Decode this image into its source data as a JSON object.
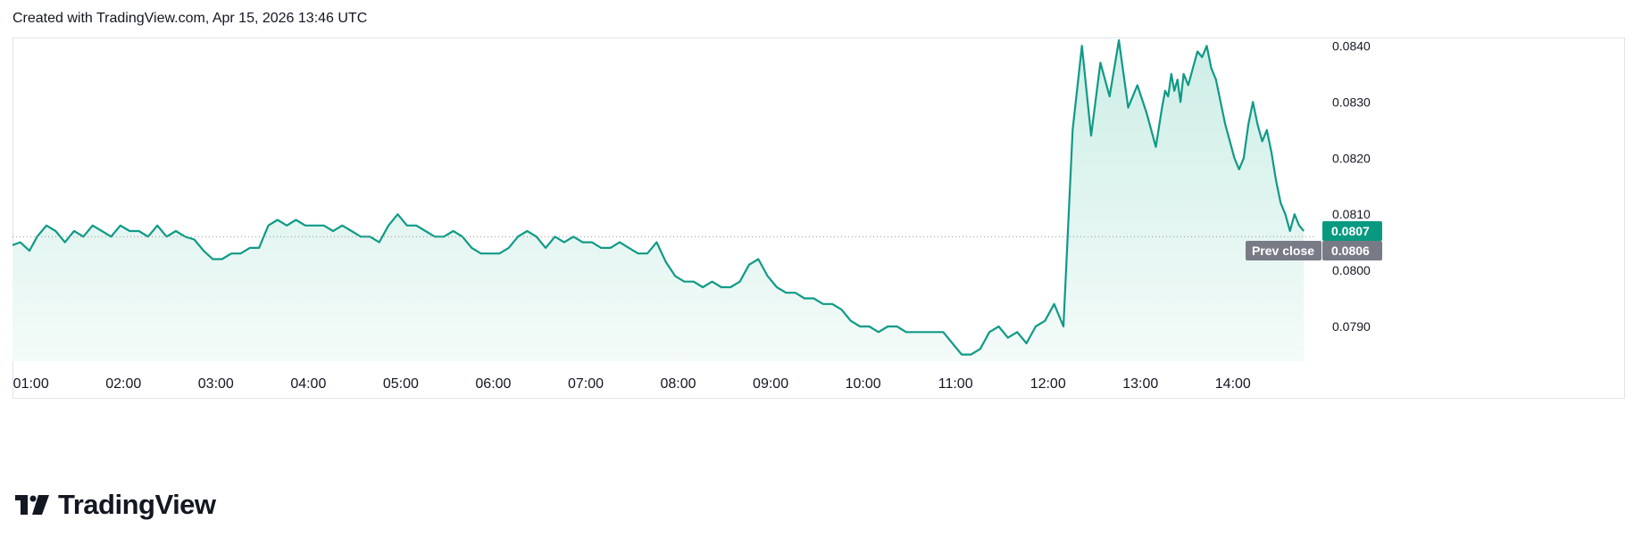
{
  "header": {
    "caption": "Created with TradingView.com, Apr 15, 2026 13:46 UTC"
  },
  "brand": {
    "name": "TradingView",
    "logo_icon": "tradingview-logo-icon"
  },
  "colors": {
    "line": "#0f9a86",
    "area_top": "#cdeee6",
    "area_bottom": "#f4fbf9",
    "label_current": "#089981",
    "label_prev": "#787b86",
    "grid_border": "#e0e3eb",
    "text": "#131722"
  },
  "price_labels": {
    "current": "0.0807",
    "prev_close_tag": "Prev close",
    "prev_close": "0.0806"
  },
  "chart_data": {
    "type": "area",
    "title": "",
    "xlabel": "",
    "ylabel": "",
    "x_ticks": [
      "01:00",
      "02:00",
      "03:00",
      "04:00",
      "05:00",
      "06:00",
      "07:00",
      "08:00",
      "09:00",
      "10:00",
      "11:00",
      "12:00",
      "13:00",
      "14:00"
    ],
    "y_ticks": [
      0.079,
      0.08,
      0.081,
      0.082,
      0.083,
      0.084
    ],
    "y_tick_labels": [
      "0.0790",
      "0.0800",
      "0.0810",
      "0.0820",
      "0.0830",
      "0.0840"
    ],
    "ylim": [
      0.07838,
      0.08415
    ],
    "xlim": [
      "00:48",
      "14:54"
    ],
    "prev_close": 0.0806,
    "current": 0.0807,
    "grid": false,
    "series": [
      {
        "x": [
          "00:48",
          "00:53",
          "00:59",
          "01:04",
          "01:10",
          "01:16",
          "01:22",
          "01:28",
          "01:34",
          "01:40",
          "01:46",
          "01:52",
          "01:58",
          "02:04",
          "02:10",
          "02:16",
          "02:22",
          "02:28",
          "02:34",
          "02:40",
          "02:46",
          "02:52",
          "02:58",
          "03:04",
          "03:10",
          "03:16",
          "03:22",
          "03:28",
          "03:34",
          "03:40",
          "03:46",
          "03:52",
          "03:58",
          "04:04",
          "04:10",
          "04:16",
          "04:22",
          "04:28",
          "04:34",
          "04:40",
          "04:46",
          "04:52",
          "04:58",
          "05:04",
          "05:10",
          "05:16",
          "05:22",
          "05:28",
          "05:34",
          "05:40",
          "05:46",
          "05:52",
          "05:58",
          "06:04",
          "06:10",
          "06:16",
          "06:22",
          "06:28",
          "06:34",
          "06:40",
          "06:46",
          "06:52",
          "06:58",
          "07:04",
          "07:10",
          "07:16",
          "07:22",
          "07:28",
          "07:34",
          "07:40",
          "07:46",
          "07:52",
          "07:58",
          "08:04",
          "08:10",
          "08:16",
          "08:22",
          "08:28",
          "08:34",
          "08:40",
          "08:46",
          "08:52",
          "08:58",
          "09:04",
          "09:10",
          "09:16",
          "09:22",
          "09:28",
          "09:34",
          "09:40",
          "09:46",
          "09:52",
          "09:58",
          "10:04",
          "10:10",
          "10:16",
          "10:22",
          "10:28",
          "10:34",
          "10:40",
          "10:46",
          "10:52",
          "10:58",
          "11:04",
          "11:10",
          "11:16",
          "11:22",
          "11:28",
          "11:34",
          "11:40",
          "11:46",
          "11:52",
          "11:58",
          "12:04",
          "12:10",
          "12:16",
          "12:22",
          "12:28",
          "12:34",
          "12:40",
          "12:46",
          "12:52",
          "12:58",
          "13:04",
          "13:10",
          "13:14",
          "13:16",
          "13:18",
          "13:20",
          "13:22",
          "13:24",
          "13:26",
          "13:28",
          "13:31",
          "13:34",
          "13:37",
          "13:40",
          "13:43",
          "13:46",
          "13:49",
          "13:52",
          "13:55",
          "13:58",
          "14:01",
          "14:04",
          "14:07",
          "14:10",
          "14:13",
          "14:16",
          "14:19",
          "14:22",
          "14:25",
          "14:28",
          "14:31",
          "14:34",
          "14:37",
          "14:40",
          "14:43",
          "14:46"
        ],
        "values": [
          0.08045,
          0.0805,
          0.08035,
          0.0806,
          0.0808,
          0.0807,
          0.0805,
          0.0807,
          0.0806,
          0.0808,
          0.0807,
          0.0806,
          0.0808,
          0.0807,
          0.0807,
          0.0806,
          0.0808,
          0.0806,
          0.0807,
          0.0806,
          0.08055,
          0.08035,
          0.0802,
          0.0802,
          0.0803,
          0.0803,
          0.0804,
          0.0804,
          0.0808,
          0.0809,
          0.0808,
          0.0809,
          0.0808,
          0.0808,
          0.0808,
          0.0807,
          0.0808,
          0.0807,
          0.0806,
          0.0806,
          0.0805,
          0.0808,
          0.081,
          0.0808,
          0.0808,
          0.0807,
          0.0806,
          0.0806,
          0.0807,
          0.0806,
          0.0804,
          0.0803,
          0.0803,
          0.0803,
          0.0804,
          0.0806,
          0.0807,
          0.0806,
          0.0804,
          0.0806,
          0.0805,
          0.0806,
          0.0805,
          0.0805,
          0.0804,
          0.0804,
          0.0805,
          0.0804,
          0.0803,
          0.0803,
          0.0805,
          0.08015,
          0.0799,
          0.0798,
          0.0798,
          0.0797,
          0.0798,
          0.0797,
          0.0797,
          0.0798,
          0.0801,
          0.0802,
          0.0799,
          0.0797,
          0.0796,
          0.0796,
          0.0795,
          0.0795,
          0.0794,
          0.0794,
          0.0793,
          0.0791,
          0.079,
          0.079,
          0.0789,
          0.079,
          0.079,
          0.0789,
          0.0789,
          0.0789,
          0.0789,
          0.0789,
          0.0787,
          0.0785,
          0.0785,
          0.0786,
          0.0789,
          0.079,
          0.0788,
          0.0789,
          0.0787,
          0.079,
          0.0791,
          0.0794,
          0.079,
          0.0825,
          0.084,
          0.0824,
          0.0837,
          0.0831,
          0.0841,
          0.0829,
          0.0833,
          0.0828,
          0.0822,
          0.0829,
          0.0832,
          0.0831,
          0.0835,
          0.0832,
          0.0834,
          0.083,
          0.0835,
          0.0833,
          0.0836,
          0.0839,
          0.0838,
          0.084,
          0.0836,
          0.0834,
          0.083,
          0.0826,
          0.0823,
          0.082,
          0.0818,
          0.082,
          0.0826,
          0.083,
          0.0826,
          0.0823,
          0.0825,
          0.0821,
          0.0816,
          0.0812,
          0.081,
          0.0807,
          0.081,
          0.0808,
          0.0807
        ]
      }
    ]
  }
}
